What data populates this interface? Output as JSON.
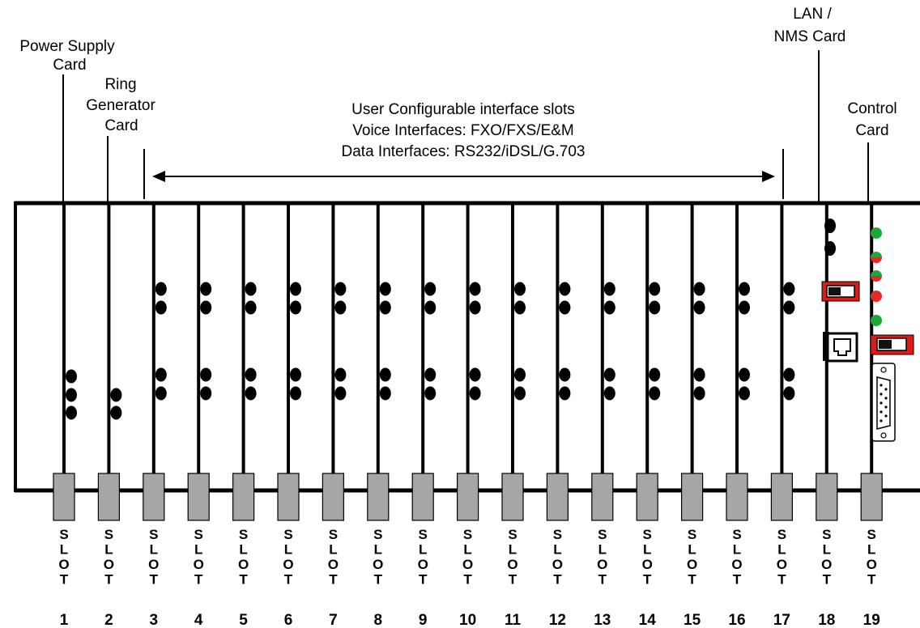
{
  "callouts": {
    "power_supply": [
      "Power Supply",
      "Card"
    ],
    "ring_generator": [
      "Ring",
      "Generator",
      "Card"
    ],
    "user_slots": [
      "User Configurable interface slots",
      "Voice Interfaces: FXO/FXS/E&M",
      "Data Interfaces: RS232/iDSL/G.703"
    ],
    "lan_nms": [
      "LAN /",
      "NMS Card"
    ],
    "control": [
      "Control",
      "Card"
    ]
  },
  "slot_word": "SLOT",
  "slots": [
    "1",
    "2",
    "3",
    "4",
    "5",
    "6",
    "7",
    "8",
    "9",
    "10",
    "11",
    "12",
    "13",
    "14",
    "15",
    "16",
    "17",
    "18",
    "19"
  ],
  "colors": {
    "frame": "#000000",
    "slot_tab": "#a6a6a6",
    "led_green": "#1fa83a",
    "led_red": "#e32b2b",
    "switch_red": "#d81c1c",
    "switch_gray": "#c8c8c8"
  },
  "icons": {
    "rj45": "rj45-port-icon",
    "db9": "db9-serial-port-icon",
    "switch": "dip-switch-icon",
    "led": "status-led-icon"
  }
}
